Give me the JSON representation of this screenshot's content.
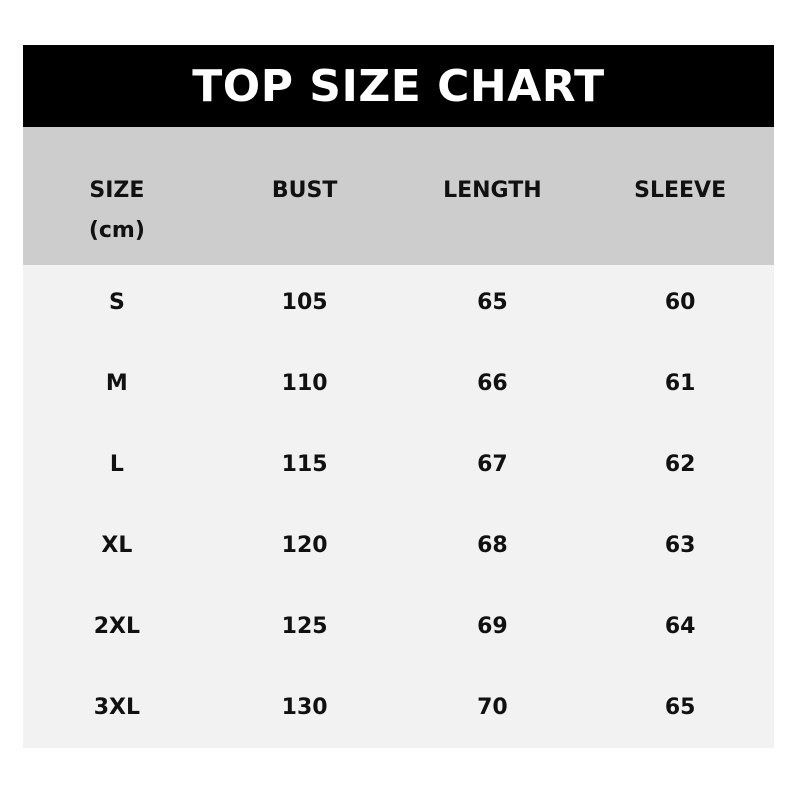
{
  "title": "TOP SIZE CHART",
  "colors": {
    "title_bg": "#000000",
    "title_text": "#ffffff",
    "header_bg": "#cdcdcd",
    "body_bg": "#f2f2f2"
  },
  "columns": [
    "SIZE\n(cm)",
    "BUST",
    "LENGTH",
    "SLEEVE"
  ],
  "rows": [
    [
      "S",
      "105",
      "65",
      "60"
    ],
    [
      "M",
      "110",
      "66",
      "61"
    ],
    [
      "L",
      "115",
      "67",
      "62"
    ],
    [
      "XL",
      "120",
      "68",
      "63"
    ],
    [
      "2XL",
      "125",
      "69",
      "64"
    ],
    [
      "3XL",
      "130",
      "70",
      "65"
    ]
  ]
}
